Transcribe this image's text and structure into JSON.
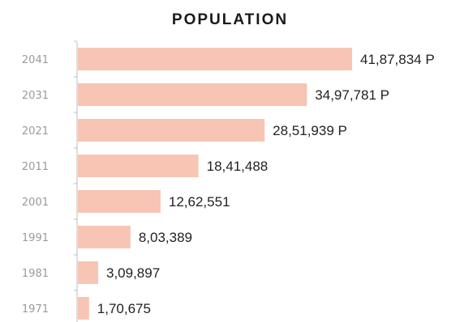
{
  "chart_data": {
    "type": "bar",
    "orientation": "horizontal",
    "title": "POPULATION",
    "xlabel": "",
    "ylabel": "",
    "categories": [
      "2041",
      "2031",
      "2021",
      "2011",
      "2001",
      "1991",
      "1981",
      "1971"
    ],
    "values": [
      4187834,
      3497781,
      2851939,
      1841488,
      1262551,
      803389,
      309897,
      170675
    ],
    "data_labels": [
      "41,87,834 P",
      "34,97,781 P",
      "28,51,939 P",
      "18,41,488",
      "12,62,551",
      "8,03,389",
      "3,09,897",
      "1,70,675"
    ],
    "xlim": [
      0,
      4187834
    ],
    "grid": false,
    "legend": "none",
    "bar_color": "#f8c4b4"
  }
}
